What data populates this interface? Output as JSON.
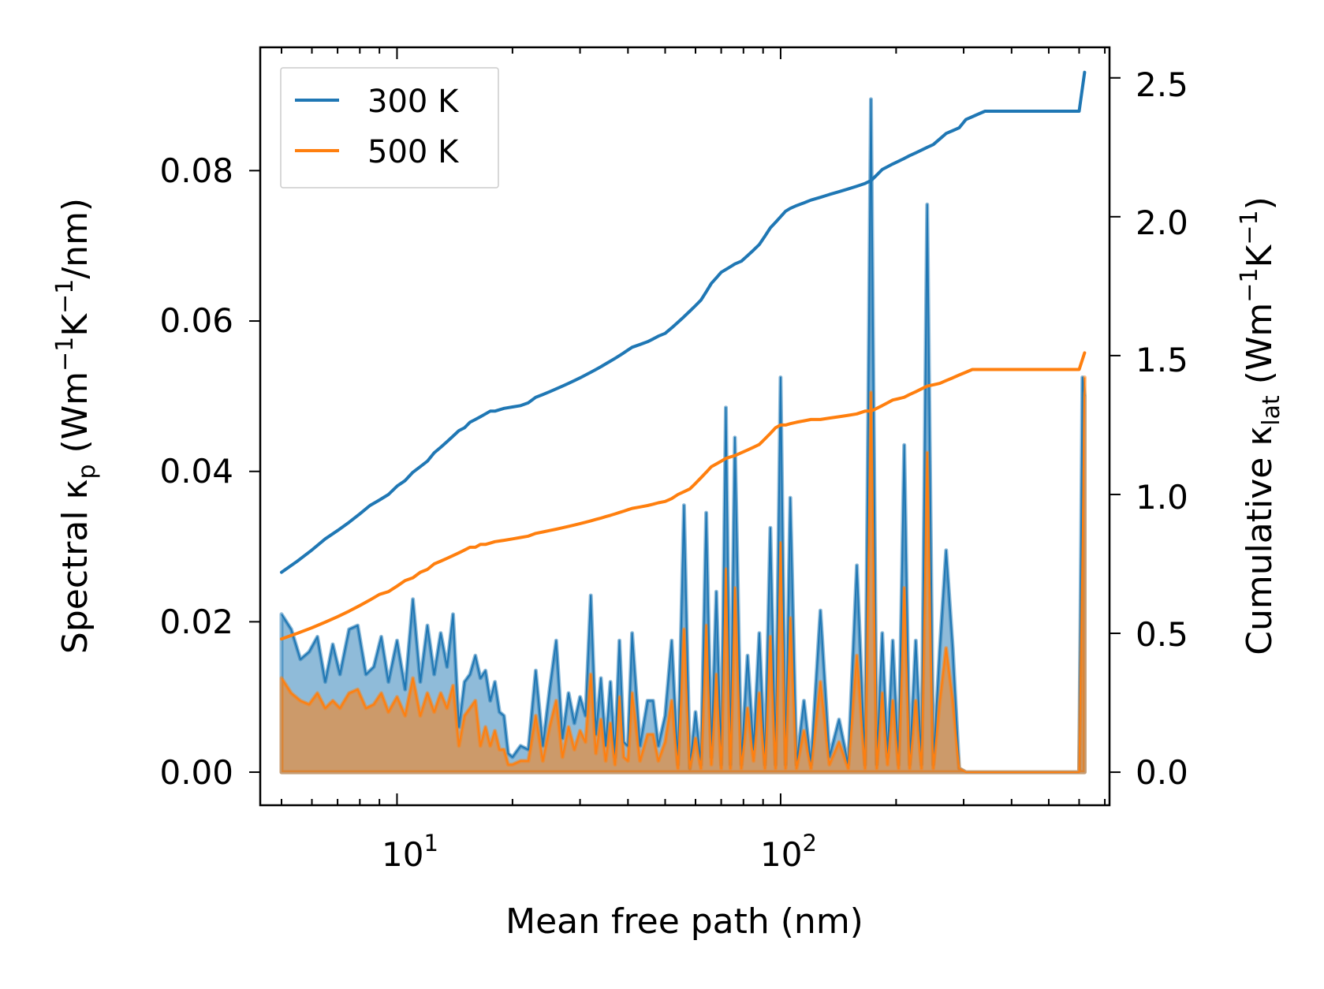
{
  "chart_data": {
    "type": "line",
    "x_scale": "log",
    "xlabel": "Mean free path (nm)",
    "ylabel_left": {
      "prefix": "Spectral κ",
      "sub": "p",
      "units_a": " (Wm",
      "sup1": "−1",
      "units_b": "K",
      "sup2": "−1",
      "units_c": "/nm)"
    },
    "ylabel_right": {
      "prefix": "Cumulative κ",
      "sub": "lat",
      "units_a": " (Wm",
      "sup1": "−1",
      "units_b": "K",
      "sup2": "−1",
      "units_c": ")"
    },
    "xlim": [
      4.4,
      720
    ],
    "ylim_left": [
      -0.0044,
      0.0964
    ],
    "ylim_right": [
      -0.119,
      2.61
    ],
    "x_major_ticks": [
      {
        "value": 10,
        "base": "10",
        "exp": "1"
      },
      {
        "value": 100,
        "base": "10",
        "exp": "2"
      }
    ],
    "y_left_ticks": [
      {
        "value": 0.0,
        "label": "0.00"
      },
      {
        "value": 0.02,
        "label": "0.02"
      },
      {
        "value": 0.04,
        "label": "0.04"
      },
      {
        "value": 0.06,
        "label": "0.06"
      },
      {
        "value": 0.08,
        "label": "0.08"
      }
    ],
    "y_right_ticks": [
      {
        "value": 0.0,
        "label": "0.0"
      },
      {
        "value": 0.5,
        "label": "0.5"
      },
      {
        "value": 1.0,
        "label": "1.0"
      },
      {
        "value": 1.5,
        "label": "1.5"
      },
      {
        "value": 2.0,
        "label": "2.0"
      },
      {
        "value": 2.5,
        "label": "2.5"
      }
    ],
    "legend": {
      "position": "top-left",
      "entries": [
        {
          "name": "300 K",
          "color": "#1f77b4"
        },
        {
          "name": "500 K",
          "color": "#ff7f0e"
        }
      ]
    },
    "series": [
      {
        "name": "300 K",
        "color": "#1f77b4",
        "spectral": {
          "x": [
            5.0,
            5.3,
            5.6,
            5.9,
            6.2,
            6.5,
            6.8,
            7.1,
            7.5,
            7.9,
            8.3,
            8.7,
            9.1,
            9.5,
            10.0,
            10.5,
            11.0,
            11.5,
            12.0,
            12.5,
            13.0,
            13.5,
            14.0,
            14.5,
            15.0,
            15.5,
            16.0,
            16.5,
            17.0,
            17.5,
            18.0,
            18.5,
            19.0,
            19.5,
            20.0,
            21.0,
            22.0,
            23.0,
            24.0,
            25.0,
            26.0,
            27.0,
            28.0,
            29.0,
            30.0,
            31.0,
            32.0,
            33.0,
            34.0,
            35.0,
            36.0,
            37.0,
            38.0,
            39.0,
            40.0,
            41.0,
            43.0,
            45.0,
            46.5,
            48.0,
            50.0,
            52.0,
            54.0,
            56.0,
            58.0,
            60.0,
            62.0,
            64.0,
            66.0,
            68.0,
            70.0,
            72.0,
            74.0,
            76.0,
            79.0,
            82.0,
            85.0,
            88.0,
            91.0,
            94.0,
            97.0,
            100.0,
            103.0,
            106.0,
            110.0,
            115.0,
            120.0,
            127.0,
            134.0,
            142.0,
            150.0,
            158.0,
            166.0,
            172.0,
            178.0,
            184.0,
            190.0,
            196.0,
            203.0,
            210.0,
            217.0,
            225.0,
            233.0,
            241.0,
            250.0,
            260.0,
            270.0,
            281.0,
            292.0,
            304.0,
            316.0,
            328.0,
            341.0,
            354.0,
            600.0,
            612.0,
            620.0
          ],
          "y": [
            0.021,
            0.019,
            0.015,
            0.016,
            0.018,
            0.012,
            0.017,
            0.013,
            0.019,
            0.0195,
            0.013,
            0.014,
            0.018,
            0.012,
            0.0175,
            0.011,
            0.023,
            0.012,
            0.0195,
            0.013,
            0.0185,
            0.014,
            0.021,
            0.006,
            0.012,
            0.013,
            0.0155,
            0.0125,
            0.0135,
            0.0095,
            0.012,
            0.008,
            0.0075,
            0.0025,
            0.002,
            0.0035,
            0.003,
            0.0135,
            0.0035,
            0.011,
            0.0175,
            0.0045,
            0.0105,
            0.0065,
            0.01,
            0.0075,
            0.0235,
            0.005,
            0.0125,
            0.0035,
            0.012,
            0.002,
            0.0175,
            0.004,
            0.0035,
            0.0185,
            0.0035,
            0.0095,
            0.0095,
            0.0035,
            0.0075,
            0.0175,
            0.001,
            0.0355,
            0.0005,
            0.008,
            0.001,
            0.0345,
            0.002,
            0.024,
            0.001,
            0.0485,
            0.001,
            0.0445,
            0.001,
            0.0155,
            0.003,
            0.0185,
            0.001,
            0.0325,
            0.001,
            0.0525,
            0.001,
            0.0365,
            0.001,
            0.0095,
            0.001,
            0.0215,
            0.002,
            0.007,
            0.001,
            0.0275,
            0.001,
            0.0895,
            0.001,
            0.0185,
            0.002,
            0.0175,
            0.001,
            0.0435,
            0.001,
            0.0175,
            0.001,
            0.0755,
            0.001,
            0.0165,
            0.0295,
            0.0165,
            0.0005,
            0.0,
            0.0,
            0.0,
            0.0,
            0.0,
            0.0,
            0.0525,
            0.05
          ]
        },
        "cumulative": {
          "x": [
            5.0,
            5.5,
            6.0,
            6.5,
            7.0,
            7.5,
            8.0,
            8.5,
            9.0,
            9.5,
            10.0,
            10.5,
            11.0,
            11.5,
            12.0,
            12.5,
            13.0,
            13.5,
            14.0,
            14.5,
            15.0,
            15.5,
            16.0,
            16.5,
            17.0,
            17.5,
            18.0,
            19.0,
            20.0,
            21.0,
            22.0,
            23.0,
            24.0,
            25.0,
            26.0,
            27.0,
            28.0,
            29.0,
            30.0,
            31.0,
            32.0,
            33.0,
            34.0,
            35.0,
            36.0,
            37.0,
            38.0,
            39.0,
            40.0,
            41.0,
            43.0,
            45.0,
            46.5,
            48.0,
            50.0,
            52.0,
            54.0,
            56.0,
            58.0,
            60.0,
            62.0,
            64.0,
            66.0,
            68.0,
            70.0,
            72.0,
            74.0,
            76.0,
            79.0,
            82.0,
            85.0,
            88.0,
            91.0,
            94.0,
            97.0,
            100.0,
            103.0,
            106.0,
            110.0,
            115.0,
            120.0,
            127.0,
            134.0,
            142.0,
            150.0,
            158.0,
            166.0,
            172.0,
            178.0,
            184.0,
            190.0,
            196.0,
            203.0,
            210.0,
            217.0,
            225.0,
            233.0,
            241.0,
            250.0,
            260.0,
            270.0,
            281.0,
            292.0,
            304.0,
            316.0,
            328.0,
            341.0,
            354.0,
            600.0,
            620.0
          ],
          "y": [
            0.72,
            0.76,
            0.8,
            0.84,
            0.87,
            0.9,
            0.93,
            0.96,
            0.98,
            1.0,
            1.03,
            1.05,
            1.08,
            1.1,
            1.12,
            1.15,
            1.17,
            1.19,
            1.21,
            1.23,
            1.24,
            1.26,
            1.27,
            1.28,
            1.29,
            1.3,
            1.3,
            1.31,
            1.315,
            1.32,
            1.33,
            1.35,
            1.36,
            1.37,
            1.38,
            1.39,
            1.4,
            1.41,
            1.42,
            1.43,
            1.44,
            1.45,
            1.46,
            1.47,
            1.48,
            1.49,
            1.5,
            1.51,
            1.52,
            1.53,
            1.54,
            1.55,
            1.56,
            1.57,
            1.58,
            1.6,
            1.62,
            1.64,
            1.66,
            1.68,
            1.7,
            1.73,
            1.76,
            1.78,
            1.8,
            1.81,
            1.82,
            1.83,
            1.84,
            1.86,
            1.88,
            1.9,
            1.93,
            1.96,
            1.98,
            2.0,
            2.02,
            2.03,
            2.04,
            2.05,
            2.06,
            2.07,
            2.08,
            2.09,
            2.1,
            2.11,
            2.12,
            2.13,
            2.15,
            2.17,
            2.18,
            2.19,
            2.2,
            2.21,
            2.22,
            2.23,
            2.24,
            2.25,
            2.26,
            2.28,
            2.3,
            2.31,
            2.32,
            2.35,
            2.36,
            2.37,
            2.38,
            2.38,
            2.38,
            2.52
          ]
        }
      },
      {
        "name": "500 K",
        "color": "#ff7f0e",
        "spectral": {
          "x": [
            5.0,
            5.3,
            5.6,
            5.9,
            6.2,
            6.5,
            6.8,
            7.1,
            7.5,
            7.9,
            8.3,
            8.7,
            9.1,
            9.5,
            10.0,
            10.5,
            11.0,
            11.5,
            12.0,
            12.5,
            13.0,
            13.5,
            14.0,
            14.5,
            15.0,
            15.5,
            16.0,
            16.5,
            17.0,
            17.5,
            18.0,
            18.5,
            19.0,
            19.5,
            20.0,
            21.0,
            22.0,
            23.0,
            24.0,
            25.0,
            26.0,
            27.0,
            28.0,
            29.0,
            30.0,
            31.0,
            32.0,
            33.0,
            34.0,
            35.0,
            36.0,
            37.0,
            38.0,
            39.0,
            40.0,
            41.0,
            43.0,
            45.0,
            46.5,
            48.0,
            50.0,
            52.0,
            54.0,
            56.0,
            58.0,
            60.0,
            62.0,
            64.0,
            66.0,
            68.0,
            70.0,
            72.0,
            74.0,
            76.0,
            79.0,
            82.0,
            85.0,
            88.0,
            91.0,
            94.0,
            97.0,
            100.0,
            103.0,
            106.0,
            110.0,
            115.0,
            120.0,
            127.0,
            134.0,
            142.0,
            150.0,
            158.0,
            166.0,
            172.0,
            178.0,
            184.0,
            190.0,
            196.0,
            203.0,
            210.0,
            217.0,
            225.0,
            233.0,
            241.0,
            250.0,
            260.0,
            270.0,
            281.0,
            292.0,
            304.0,
            316.0,
            328.0,
            341.0,
            354.0,
            600.0,
            612.0,
            620.0
          ],
          "y": [
            0.0125,
            0.0105,
            0.0095,
            0.009,
            0.0105,
            0.0085,
            0.0095,
            0.0085,
            0.0105,
            0.011,
            0.0085,
            0.009,
            0.0105,
            0.008,
            0.01,
            0.0075,
            0.0125,
            0.0075,
            0.0105,
            0.008,
            0.0105,
            0.0085,
            0.0115,
            0.0035,
            0.0075,
            0.0085,
            0.0095,
            0.0035,
            0.006,
            0.0035,
            0.0055,
            0.003,
            0.003,
            0.001,
            0.001,
            0.0015,
            0.0015,
            0.0075,
            0.0015,
            0.006,
            0.0095,
            0.002,
            0.006,
            0.003,
            0.0055,
            0.004,
            0.013,
            0.0025,
            0.007,
            0.0015,
            0.0065,
            0.001,
            0.01,
            0.002,
            0.0015,
            0.0105,
            0.0015,
            0.005,
            0.005,
            0.0015,
            0.004,
            0.0095,
            0.0005,
            0.019,
            0.0005,
            0.0045,
            0.0005,
            0.0195,
            0.001,
            0.013,
            0.0005,
            0.027,
            0.0005,
            0.0245,
            0.0005,
            0.0085,
            0.0015,
            0.0105,
            0.0005,
            0.018,
            0.0005,
            0.0305,
            0.0005,
            0.0205,
            0.0005,
            0.0055,
            0.0005,
            0.012,
            0.001,
            0.004,
            0.0005,
            0.0155,
            0.0005,
            0.0505,
            0.0005,
            0.0105,
            0.001,
            0.0095,
            0.0005,
            0.0245,
            0.0005,
            0.0095,
            0.0005,
            0.0425,
            0.0005,
            0.0095,
            0.0165,
            0.0095,
            0.0005,
            0.0,
            0.0,
            0.0,
            0.0,
            0.0,
            0.0,
            0.0305,
            0.0525
          ]
        },
        "cumulative": {
          "x": [
            5.0,
            5.5,
            6.0,
            6.5,
            7.0,
            7.5,
            8.0,
            8.5,
            9.0,
            9.5,
            10.0,
            10.5,
            11.0,
            11.5,
            12.0,
            12.5,
            13.0,
            13.5,
            14.0,
            14.5,
            15.0,
            15.5,
            16.0,
            16.5,
            17.0,
            17.5,
            18.0,
            19.0,
            20.0,
            21.0,
            22.0,
            23.0,
            24.0,
            25.0,
            26.0,
            27.0,
            28.0,
            29.0,
            30.0,
            31.0,
            32.0,
            33.0,
            34.0,
            35.0,
            36.0,
            37.0,
            38.0,
            39.0,
            40.0,
            41.0,
            43.0,
            45.0,
            46.5,
            48.0,
            50.0,
            52.0,
            54.0,
            56.0,
            58.0,
            60.0,
            62.0,
            64.0,
            66.0,
            68.0,
            70.0,
            72.0,
            74.0,
            76.0,
            79.0,
            82.0,
            85.0,
            88.0,
            91.0,
            94.0,
            97.0,
            100.0,
            103.0,
            106.0,
            110.0,
            115.0,
            120.0,
            127.0,
            134.0,
            142.0,
            150.0,
            158.0,
            166.0,
            172.0,
            178.0,
            184.0,
            190.0,
            196.0,
            203.0,
            210.0,
            217.0,
            225.0,
            233.0,
            241.0,
            250.0,
            260.0,
            270.0,
            281.0,
            292.0,
            304.0,
            316.0,
            328.0,
            341.0,
            354.0,
            600.0,
            620.0
          ],
          "y": [
            0.48,
            0.5,
            0.52,
            0.54,
            0.56,
            0.58,
            0.6,
            0.62,
            0.64,
            0.65,
            0.67,
            0.69,
            0.7,
            0.72,
            0.73,
            0.75,
            0.76,
            0.77,
            0.78,
            0.79,
            0.8,
            0.81,
            0.81,
            0.82,
            0.82,
            0.825,
            0.83,
            0.835,
            0.84,
            0.845,
            0.85,
            0.86,
            0.865,
            0.87,
            0.875,
            0.88,
            0.885,
            0.89,
            0.895,
            0.9,
            0.905,
            0.91,
            0.915,
            0.92,
            0.925,
            0.93,
            0.935,
            0.94,
            0.945,
            0.95,
            0.955,
            0.96,
            0.965,
            0.97,
            0.975,
            0.985,
            1.0,
            1.01,
            1.02,
            1.04,
            1.06,
            1.08,
            1.1,
            1.11,
            1.12,
            1.13,
            1.135,
            1.14,
            1.15,
            1.16,
            1.17,
            1.18,
            1.2,
            1.22,
            1.24,
            1.25,
            1.25,
            1.255,
            1.26,
            1.265,
            1.27,
            1.27,
            1.275,
            1.28,
            1.285,
            1.29,
            1.3,
            1.3,
            1.31,
            1.32,
            1.33,
            1.34,
            1.345,
            1.35,
            1.36,
            1.37,
            1.38,
            1.39,
            1.395,
            1.4,
            1.41,
            1.42,
            1.43,
            1.44,
            1.45,
            1.45,
            1.45,
            1.45,
            1.45,
            1.51
          ]
        }
      }
    ]
  }
}
